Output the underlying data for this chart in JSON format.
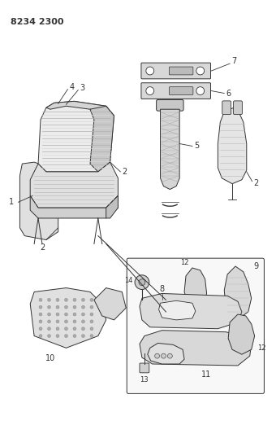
{
  "title": "8234 2300",
  "bg_color": "#ffffff",
  "fg_color": "#1a1a1a",
  "fig_width": 3.4,
  "fig_height": 5.33,
  "dpi": 100,
  "line_color": "#333333",
  "light_fill": "#e8e8e8",
  "mid_fill": "#d0d0d0"
}
